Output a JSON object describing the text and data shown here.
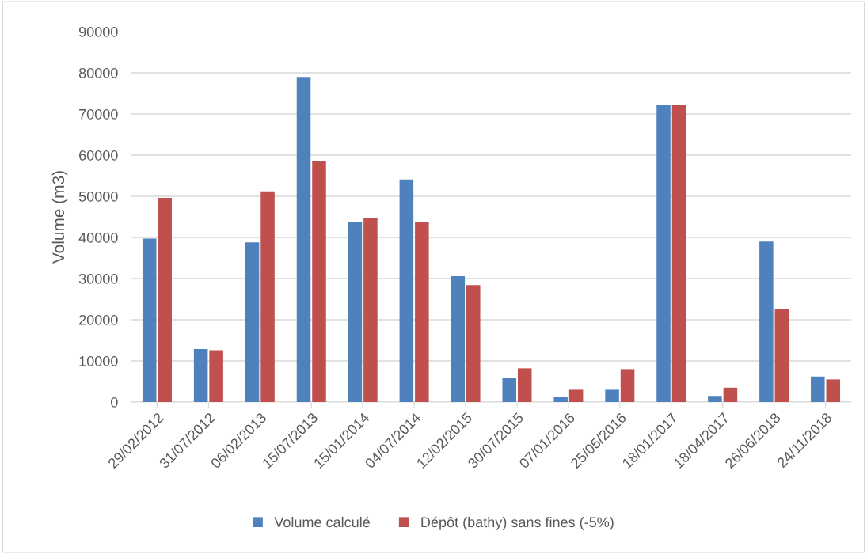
{
  "chart_data": {
    "type": "bar",
    "ylabel": "Volume (m3)",
    "categories": [
      "29/02/2012",
      "31/07/2012",
      "06/02/2013",
      "15/07/2013",
      "15/01/2014",
      "04/07/2014",
      "12/02/2015",
      "30/07/2015",
      "07/01/2016",
      "25/05/2016",
      "18/01/2017",
      "18/04/2017",
      "26/06/2018",
      "24/11/2018"
    ],
    "series": [
      {
        "name": "Volume calculé",
        "color": "#4f81bd",
        "values": [
          39700,
          12900,
          38800,
          79000,
          43700,
          54100,
          30600,
          5900,
          1300,
          3000,
          72100,
          1500,
          39000,
          6200
        ]
      },
      {
        "name": "Dépôt (bathy) sans fines (-5%)",
        "color": "#c0504d",
        "values": [
          49600,
          12600,
          51200,
          58500,
          44700,
          43700,
          28400,
          8200,
          3000,
          8000,
          72100,
          3500,
          22700,
          5500
        ]
      }
    ],
    "ylim": [
      0,
      90000
    ],
    "yticks": [
      0,
      10000,
      20000,
      30000,
      40000,
      50000,
      60000,
      70000,
      80000,
      90000
    ],
    "grid": "y",
    "legend": "bottom"
  }
}
